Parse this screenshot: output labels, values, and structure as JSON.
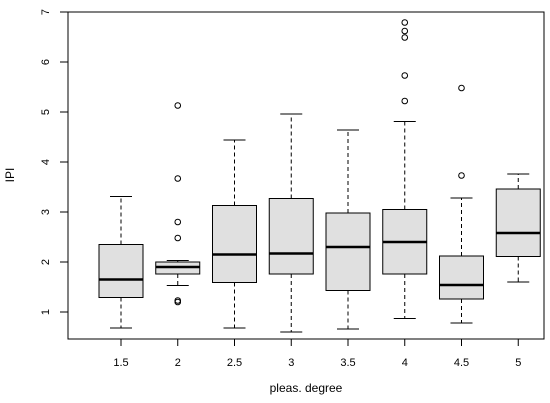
{
  "chart_data": {
    "type": "box",
    "xlabel": "pleas. degree",
    "ylabel": "IPI",
    "ylim": [
      0.45,
      7.0
    ],
    "yticks": [
      1,
      2,
      3,
      4,
      5,
      6,
      7
    ],
    "grid": false,
    "box_fill": "#e0e0e0",
    "line_color": "#000000",
    "categories": [
      "1.5",
      "2",
      "2.5",
      "3",
      "3.5",
      "4",
      "4.5",
      "5"
    ],
    "boxes": [
      {
        "category": "1.5",
        "whisker_low": 0.68,
        "q1": 1.29,
        "median": 1.65,
        "q3": 2.35,
        "whisker_high": 3.31,
        "outliers": []
      },
      {
        "category": "2",
        "whisker_low": 1.53,
        "q1": 1.76,
        "median": 1.9,
        "q3": 2.0,
        "whisker_high": 2.03,
        "outliers": [
          1.2,
          1.23,
          2.48,
          2.8,
          3.67,
          5.13
        ]
      },
      {
        "category": "2.5",
        "whisker_low": 0.68,
        "q1": 1.59,
        "median": 2.15,
        "q3": 3.13,
        "whisker_high": 4.44,
        "outliers": []
      },
      {
        "category": "3",
        "whisker_low": 0.6,
        "q1": 1.76,
        "median": 2.17,
        "q3": 3.27,
        "whisker_high": 4.96,
        "outliers": []
      },
      {
        "category": "3.5",
        "whisker_low": 0.66,
        "q1": 1.43,
        "median": 2.3,
        "q3": 2.98,
        "whisker_high": 4.64,
        "outliers": []
      },
      {
        "category": "4",
        "whisker_low": 0.87,
        "q1": 1.76,
        "median": 2.4,
        "q3": 3.05,
        "whisker_high": 4.81,
        "outliers": [
          5.22,
          5.73,
          6.49,
          6.62,
          6.79
        ]
      },
      {
        "category": "4.5",
        "whisker_low": 0.78,
        "q1": 1.26,
        "median": 1.54,
        "q3": 2.12,
        "whisker_high": 3.28,
        "outliers": [
          3.73,
          5.48
        ]
      },
      {
        "category": "5",
        "whisker_low": 1.6,
        "q1": 2.11,
        "median": 2.58,
        "q3": 3.46,
        "whisker_high": 3.76,
        "outliers": []
      }
    ]
  }
}
